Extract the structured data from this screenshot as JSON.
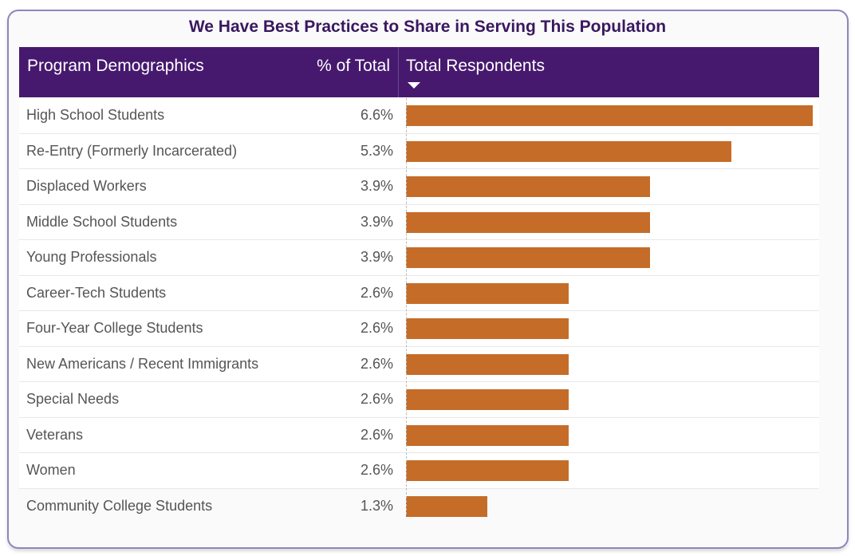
{
  "chart_data": {
    "type": "table",
    "title": "We Have Best Practices to Share in Serving This Population",
    "columns": [
      "Program Demographics",
      "% of Total",
      "Total Respondents"
    ],
    "categories": [
      "High School Students",
      "Re-Entry (Formerly Incarcerated)",
      "Displaced Workers",
      "Middle School Students",
      "Young Professionals",
      "Career-Tech Students",
      "Four-Year College Students",
      "New Americans / Recent Immigrants",
      "Special Needs",
      "Veterans",
      "Women",
      "Community College Students"
    ],
    "percents": [
      "6.6%",
      "5.3%",
      "3.9%",
      "3.9%",
      "3.9%",
      "2.6%",
      "2.6%",
      "2.6%",
      "2.6%",
      "2.6%",
      "2.6%",
      "1.3%"
    ],
    "values": [
      5,
      4,
      3,
      3,
      3,
      2,
      2,
      2,
      2,
      2,
      2,
      1
    ],
    "sort": "Total Respondents descending",
    "bar_color": "#c56c28",
    "header_color": "#46196e"
  }
}
